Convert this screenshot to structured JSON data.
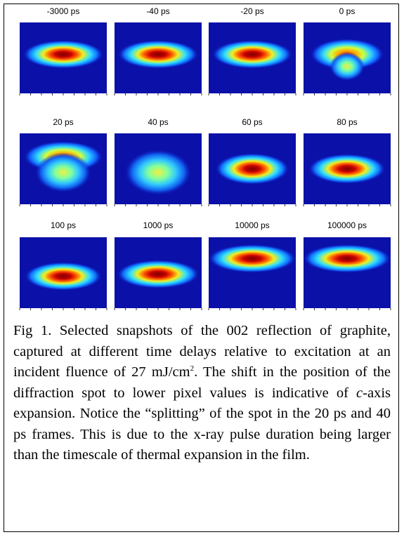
{
  "panels": [
    {
      "label": "-3000 ps"
    },
    {
      "label": "-40 ps"
    },
    {
      "label": "-20 ps"
    },
    {
      "label": "0 ps"
    },
    {
      "label": "20 ps"
    },
    {
      "label": "40 ps"
    },
    {
      "label": "60 ps"
    },
    {
      "label": "80 ps"
    },
    {
      "label": "100 ps"
    },
    {
      "label": "1000 ps"
    },
    {
      "label": "10000 ps"
    },
    {
      "label": "100000 ps"
    }
  ],
  "caption": [
    "Fig 1. Selected snapshots of the 002 reflection of graphite, captured at different time delays relative to excitation at an incident fluence of 27 mJ/cm",
    "2",
    ". The shift in the position of the diffraction spot to lower pixel values is indicative of ",
    "c",
    "-axis expansion. Notice the “splitting” of the spot in the 20 ps and 40 ps frames. This is due to the x-ray pulse duration being larger than the timescale of thermal expansion in the film."
  ]
}
